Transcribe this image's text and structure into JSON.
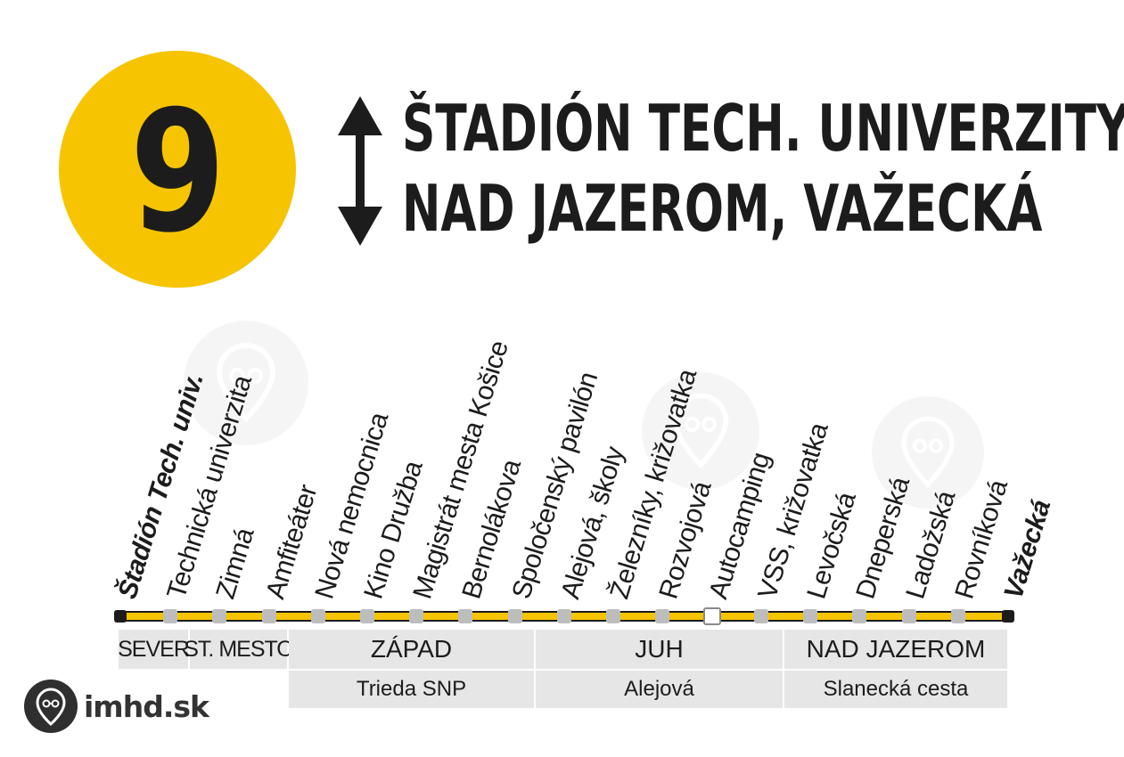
{
  "route": {
    "number": "9",
    "title_line1": "ŠTADIÓN TECH. UNIVERZITY",
    "title_line2": "NAD JAZEROM, VAŽECKÁ",
    "badge_color": "#f6c400"
  },
  "stops": [
    {
      "name": "Štadión Tech. univ.",
      "type": "terminal"
    },
    {
      "name": "Technická univerzita",
      "type": "regular"
    },
    {
      "name": "Zimná",
      "type": "regular"
    },
    {
      "name": "Amfiteáter",
      "type": "regular"
    },
    {
      "name": "Nová nemocnica",
      "type": "regular"
    },
    {
      "name": "Kino Družba",
      "type": "regular"
    },
    {
      "name": "Magistrát mesta Košice",
      "type": "regular"
    },
    {
      "name": "Bernolákova",
      "type": "regular"
    },
    {
      "name": "Spoločenský pavilón",
      "type": "regular"
    },
    {
      "name": "Alejová, školy",
      "type": "regular"
    },
    {
      "name": "Železníky, križovatka",
      "type": "regular"
    },
    {
      "name": "Rozvojová",
      "type": "regular"
    },
    {
      "name": "Autocamping",
      "type": "request"
    },
    {
      "name": "VSS, križovatka",
      "type": "regular"
    },
    {
      "name": "Levočská",
      "type": "regular"
    },
    {
      "name": "Dneperská",
      "type": "regular"
    },
    {
      "name": "Ladožská",
      "type": "regular"
    },
    {
      "name": "Rovníková",
      "type": "regular"
    },
    {
      "name": "Važecká",
      "type": "terminal"
    }
  ],
  "zones": {
    "sever": "SEVER",
    "st_mesto": "ST. MESTO",
    "zapad": "ZÁPAD",
    "juh": "JUH",
    "nad_jazerom": "NAD JAZEROM"
  },
  "streets": {
    "zapad": "Trieda SNP",
    "juh": "Alejová",
    "nad_jazerom": "Slanecká cesta"
  },
  "logo": {
    "text": "imhd.sk",
    "icon": "imhd-logo-icon"
  },
  "colors": {
    "line": "#f6c400",
    "stop": "#bdbdbd",
    "terminal": "#1c1c1c",
    "zone_bg": "#e6e6e6"
  }
}
